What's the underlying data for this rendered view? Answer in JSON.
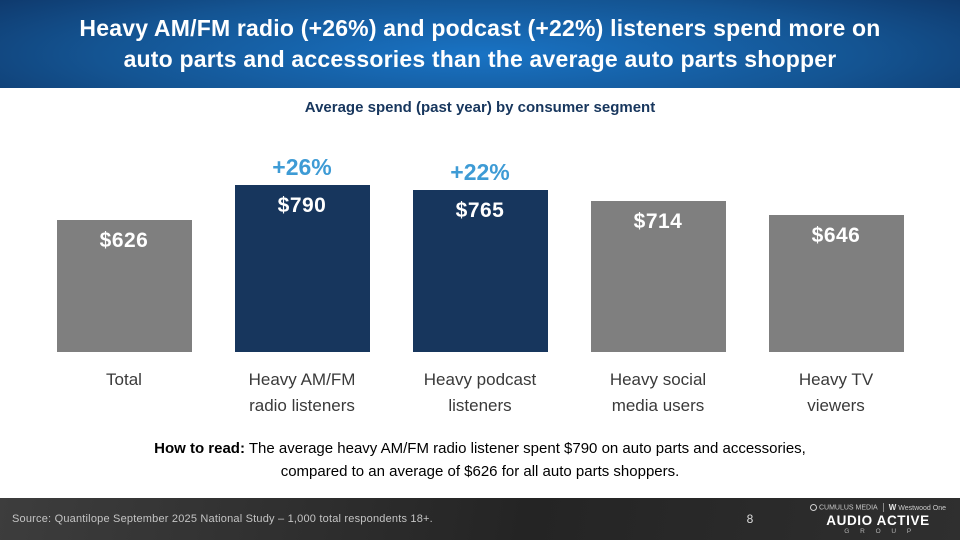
{
  "header": {
    "title_line1": "Heavy AM/FM radio (+26%) and podcast (+22%) listeners spend more on",
    "title_line2": "auto parts and accessories than the average auto parts shopper"
  },
  "chart_data": {
    "type": "bar",
    "title": "Average spend (past year) by consumer segment",
    "categories": [
      "Total",
      "Heavy AM/FM\nradio listeners",
      "Heavy podcast\nlisteners",
      "Heavy social\nmedia users",
      "Heavy TV\nviewers"
    ],
    "values": [
      626,
      790,
      765,
      714,
      646
    ],
    "value_labels": [
      "$626",
      "$790",
      "$765",
      "$714",
      "$646"
    ],
    "delta_labels": [
      "",
      "+26%",
      "+22%",
      "",
      ""
    ],
    "bar_colors": [
      "#7F7F7F",
      "#17365D",
      "#17365D",
      "#7F7F7F",
      "#7F7F7F"
    ],
    "colors": {
      "highlight_bar": "#17365D",
      "base_bar": "#7F7F7F",
      "delta_text": "#3E9BD5",
      "value_text": "#FFFFFF",
      "title_text": "#17365D"
    },
    "xlabel": "",
    "ylabel": "",
    "ylim": [
      0,
      800
    ],
    "grid": false,
    "legend": false
  },
  "how_to_read": {
    "label": "How to read:",
    "line1": "The average heavy AM/FM radio listener spent $790 on auto parts and accessories,",
    "line2": "compared to an average of $626 for all auto parts shoppers."
  },
  "footer": {
    "source": "Source: Quantilope September 2025 National Study – 1,000 total respondents 18+.",
    "page_number": "8",
    "logo": {
      "cumulus": "CUMULUS MEDIA",
      "westwood": "Westwood One",
      "main": "AUDIO ACTIVE",
      "sub": "G R O U P"
    }
  }
}
